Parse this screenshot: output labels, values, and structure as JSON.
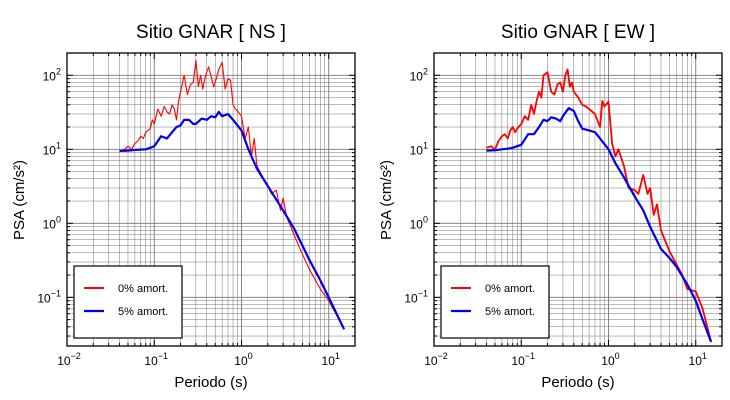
{
  "chart_data": [
    {
      "type": "line",
      "title": "Sitio GNAR [ NS ]",
      "xlabel": "Periodo (s)",
      "ylabel": "PSA (cm/s²)",
      "xscale": "log",
      "yscale": "log",
      "xlim": [
        0.01,
        20
      ],
      "ylim": [
        0.022,
        200
      ],
      "grid": true,
      "legend_position": "bottom-left",
      "x_ticks": [
        {
          "base": "10",
          "exp": "−2",
          "v": 0.01
        },
        {
          "base": "10",
          "exp": "−1",
          "v": 0.1
        },
        {
          "base": "10",
          "exp": "0",
          "v": 1
        },
        {
          "base": "10",
          "exp": "1",
          "v": 10
        }
      ],
      "y_ticks": [
        {
          "base": "10",
          "exp": "−1",
          "v": 0.1
        },
        {
          "base": "10",
          "exp": "0",
          "v": 1
        },
        {
          "base": "10",
          "exp": "1",
          "v": 10
        },
        {
          "base": "10",
          "exp": "2",
          "v": 100
        }
      ],
      "series": [
        {
          "name": "0% amort.",
          "color": "#ff0000",
          "x": [
            0.04,
            0.045,
            0.05,
            0.055,
            0.06,
            0.065,
            0.07,
            0.075,
            0.08,
            0.085,
            0.09,
            0.095,
            0.1,
            0.11,
            0.12,
            0.13,
            0.14,
            0.15,
            0.16,
            0.17,
            0.18,
            0.19,
            0.2,
            0.22,
            0.24,
            0.26,
            0.28,
            0.3,
            0.32,
            0.34,
            0.36,
            0.38,
            0.4,
            0.42,
            0.45,
            0.48,
            0.5,
            0.55,
            0.6,
            0.65,
            0.7,
            0.75,
            0.8,
            0.85,
            0.9,
            1.0,
            1.1,
            1.2,
            1.3,
            1.4,
            1.5,
            1.7,
            2.0,
            2.2,
            2.5,
            2.8,
            3.0,
            3.3,
            3.6,
            4.0,
            5.0,
            6.0,
            8.0,
            10.0,
            15.0
          ],
          "y": [
            9.5,
            9.8,
            11,
            10,
            12,
            13,
            15,
            14,
            17,
            18,
            19,
            25,
            22,
            35,
            28,
            38,
            32,
            30,
            40,
            35,
            25,
            45,
            60,
            100,
            55,
            75,
            80,
            160,
            70,
            100,
            65,
            90,
            110,
            130,
            95,
            70,
            80,
            120,
            150,
            65,
            90,
            85,
            40,
            35,
            33,
            28,
            14,
            20,
            8,
            14,
            6,
            4.5,
            3.2,
            2.5,
            2.8,
            1.5,
            2.2,
            1.2,
            0.95,
            0.7,
            0.38,
            0.24,
            0.13,
            0.09,
            0.037
          ]
        },
        {
          "name": "5% amort.",
          "color": "#0000ee",
          "x": [
            0.04,
            0.05,
            0.06,
            0.07,
            0.08,
            0.09,
            0.1,
            0.12,
            0.14,
            0.16,
            0.18,
            0.2,
            0.22,
            0.25,
            0.28,
            0.3,
            0.35,
            0.4,
            0.45,
            0.5,
            0.55,
            0.6,
            0.7,
            0.8,
            1.0,
            1.2,
            1.5,
            2.0,
            2.5,
            3.0,
            4.0,
            5.0,
            6.0,
            8.0,
            10.0,
            15.0
          ],
          "y": [
            9.5,
            9.6,
            9.8,
            9.9,
            10,
            10.5,
            11,
            15,
            14,
            17,
            20,
            21,
            25,
            25,
            22,
            22,
            26,
            25,
            28,
            27,
            32,
            28,
            30,
            25,
            18,
            10,
            5.5,
            3.2,
            2.1,
            1.5,
            0.85,
            0.5,
            0.32,
            0.17,
            0.1,
            0.037
          ]
        }
      ],
      "legend": {
        "s0": "0% amort.",
        "s1": "5% amort."
      }
    },
    {
      "type": "line",
      "title": "Sitio GNAR [ EW ]",
      "xlabel": "Periodo (s)",
      "ylabel": "PSA (cm/s²)",
      "xscale": "log",
      "yscale": "log",
      "xlim": [
        0.01,
        20
      ],
      "ylim": [
        0.022,
        200
      ],
      "grid": true,
      "legend_position": "bottom-left",
      "x_ticks": [
        {
          "base": "10",
          "exp": "−2",
          "v": 0.01
        },
        {
          "base": "10",
          "exp": "−1",
          "v": 0.1
        },
        {
          "base": "10",
          "exp": "0",
          "v": 1
        },
        {
          "base": "10",
          "exp": "1",
          "v": 10
        }
      ],
      "y_ticks": [
        {
          "base": "10",
          "exp": "−1",
          "v": 0.1
        },
        {
          "base": "10",
          "exp": "0",
          "v": 1
        },
        {
          "base": "10",
          "exp": "1",
          "v": 10
        },
        {
          "base": "10",
          "exp": "2",
          "v": 100
        }
      ],
      "series": [
        {
          "name": "0% amort.",
          "color": "#ff0000",
          "x": [
            0.04,
            0.045,
            0.05,
            0.055,
            0.06,
            0.065,
            0.07,
            0.075,
            0.08,
            0.085,
            0.09,
            0.1,
            0.11,
            0.12,
            0.13,
            0.14,
            0.15,
            0.16,
            0.17,
            0.18,
            0.2,
            0.22,
            0.24,
            0.26,
            0.28,
            0.3,
            0.32,
            0.34,
            0.36,
            0.38,
            0.4,
            0.45,
            0.5,
            0.55,
            0.6,
            0.7,
            0.8,
            0.85,
            0.9,
            1.0,
            1.1,
            1.2,
            1.3,
            1.5,
            1.7,
            2.0,
            2.2,
            2.5,
            2.8,
            3.0,
            3.3,
            3.6,
            4.0,
            5.0,
            6.0,
            7.0,
            8.0,
            10.0,
            12.0,
            15.0
          ],
          "y": [
            10.5,
            11,
            10,
            13,
            15,
            16,
            14,
            18,
            20,
            17,
            19,
            22,
            28,
            25,
            40,
            30,
            45,
            60,
            50,
            100,
            110,
            60,
            55,
            75,
            80,
            60,
            100,
            120,
            70,
            80,
            60,
            50,
            40,
            38,
            35,
            30,
            20,
            45,
            38,
            44,
            12,
            8,
            10,
            6,
            3,
            2.8,
            2.5,
            4.5,
            2.5,
            3,
            1.3,
            1.8,
            0.8,
            0.42,
            0.28,
            0.2,
            0.13,
            0.12,
            0.07,
            0.025
          ]
        },
        {
          "name": "5% amort.",
          "color": "#0000ee",
          "x": [
            0.04,
            0.05,
            0.06,
            0.07,
            0.08,
            0.09,
            0.1,
            0.12,
            0.14,
            0.16,
            0.18,
            0.2,
            0.22,
            0.25,
            0.28,
            0.3,
            0.35,
            0.4,
            0.45,
            0.5,
            0.6,
            0.7,
            0.8,
            1.0,
            1.2,
            1.5,
            2.0,
            2.5,
            3.0,
            4.0,
            5.0,
            6.0,
            8.0,
            10.0,
            12.0,
            15.0
          ],
          "y": [
            9.6,
            9.7,
            10,
            10.2,
            10.5,
            11,
            11.5,
            16,
            16,
            20,
            25,
            24,
            27,
            26,
            24,
            28,
            36,
            33,
            24,
            19,
            18,
            17,
            14,
            10,
            6.5,
            4.2,
            2.3,
            1.5,
            0.9,
            0.45,
            0.34,
            0.26,
            0.15,
            0.09,
            0.05,
            0.025
          ]
        }
      ],
      "legend": {
        "s0": "0% amort.",
        "s1": "5% amort."
      }
    }
  ]
}
